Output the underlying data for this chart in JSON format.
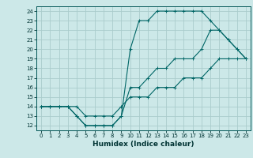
{
  "xlabel": "Humidex (Indice chaleur)",
  "bg_color": "#cce8e8",
  "grid_color": "#aacccc",
  "line_color": "#006666",
  "xlim": [
    -0.5,
    23.5
  ],
  "ylim": [
    11.5,
    24.5
  ],
  "xticks": [
    0,
    1,
    2,
    3,
    4,
    5,
    6,
    7,
    8,
    9,
    10,
    11,
    12,
    13,
    14,
    15,
    16,
    17,
    18,
    19,
    20,
    21,
    22,
    23
  ],
  "yticks": [
    12,
    13,
    14,
    15,
    16,
    17,
    18,
    19,
    20,
    21,
    22,
    23,
    24
  ],
  "line1_x": [
    0,
    1,
    2,
    3,
    4,
    5,
    6,
    7,
    8,
    9,
    10,
    11,
    12,
    13,
    14,
    15,
    16,
    17,
    18,
    19,
    20,
    21,
    22,
    23
  ],
  "line1_y": [
    14,
    14,
    14,
    14,
    13,
    12,
    12,
    12,
    12,
    13,
    20,
    23,
    23,
    24,
    24,
    24,
    24,
    24,
    24,
    23,
    22,
    21,
    20,
    19
  ],
  "line2_x": [
    0,
    1,
    2,
    3,
    4,
    5,
    6,
    7,
    8,
    9,
    10,
    11,
    12,
    13,
    14,
    15,
    16,
    17,
    18,
    19,
    20,
    21,
    22,
    23
  ],
  "line2_y": [
    14,
    14,
    14,
    14,
    13,
    12,
    12,
    12,
    12,
    13,
    16,
    16,
    17,
    18,
    18,
    19,
    19,
    19,
    20,
    22,
    22,
    21,
    20,
    19
  ],
  "line3_x": [
    0,
    1,
    2,
    3,
    4,
    5,
    6,
    7,
    8,
    9,
    10,
    11,
    12,
    13,
    14,
    15,
    16,
    17,
    18,
    19,
    20,
    21,
    22,
    23
  ],
  "line3_y": [
    14,
    14,
    14,
    14,
    14,
    13,
    13,
    13,
    13,
    14,
    15,
    15,
    15,
    16,
    16,
    16,
    17,
    17,
    17,
    18,
    19,
    19,
    19,
    19
  ],
  "tick_fontsize": 5.0,
  "xlabel_fontsize": 6.5,
  "marker_size": 2.5,
  "line_width": 0.8
}
